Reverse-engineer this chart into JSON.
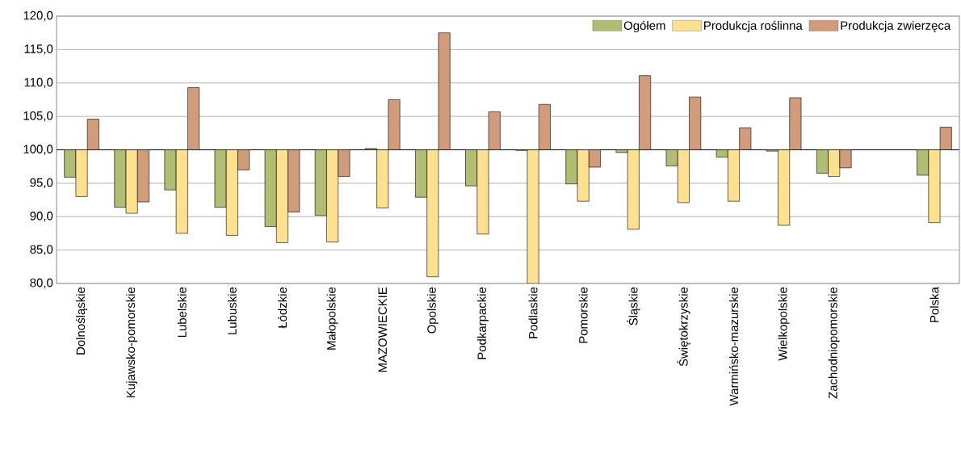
{
  "chart_data": {
    "type": "bar",
    "categories": [
      "Dolnośląskie",
      "Kujawsko-pomorskie",
      "Lubelskie",
      "Lubuskie",
      "Łódzkie",
      "Małopolskie",
      "MAZOWIECKIE",
      "Opolskie",
      "Podkarpackie",
      "Podlaskie",
      "Pomorskie",
      "Śląskie",
      "Świętokrzyskie",
      "Warmińsko-mazurskie",
      "Wielkopolskie",
      "Zachodniopomorskie",
      null,
      "Polska"
    ],
    "series": [
      {
        "name": "Ogółem",
        "color": "#b0bd73",
        "base": [
          100,
          100,
          100,
          100,
          100,
          100,
          100,
          100,
          100,
          100,
          100,
          100,
          100,
          100,
          100,
          100,
          null,
          100
        ],
        "values": [
          -4.1,
          -8.6,
          -6.0,
          -8.6,
          -11.5,
          -9.8,
          0.2,
          -7.1,
          -5.4,
          -0.1,
          -5.1,
          -0.4,
          -2.4,
          -1.1,
          -0.2,
          -3.5,
          null,
          -3.8
        ]
      },
      {
        "name": "Produkcja roślinna",
        "color": "#fde190",
        "base": [
          100,
          100,
          100,
          100,
          100,
          100,
          100,
          100,
          100,
          100,
          100,
          100,
          100,
          100,
          100,
          100,
          null,
          100
        ],
        "values": [
          -7.0,
          -9.5,
          -12.5,
          -12.8,
          -13.9,
          -13.8,
          -8.7,
          -19.0,
          -12.6,
          -20.0,
          -7.7,
          -11.9,
          -7.9,
          -7.7,
          -11.3,
          -4.0,
          null,
          -10.9
        ]
      },
      {
        "name": "Produkcja zwierzęca",
        "color": "#d19c7b",
        "base": [
          100,
          100,
          100,
          100,
          100,
          100,
          100,
          100,
          100,
          100,
          100,
          100,
          100,
          100,
          100,
          100,
          null,
          100
        ],
        "values": [
          4.6,
          -7.8,
          9.3,
          -3.0,
          -9.3,
          -4.0,
          7.5,
          17.5,
          5.7,
          6.8,
          -2.6,
          11.1,
          7.9,
          3.3,
          7.8,
          -2.7,
          null,
          3.4
        ]
      }
    ],
    "ylim": [
      80,
      120
    ],
    "yticks": [
      {
        "value": 80,
        "label": "80,0"
      },
      {
        "value": 85,
        "label": "85,0"
      },
      {
        "value": 90,
        "label": "90,0"
      },
      {
        "value": 95,
        "label": "95,0"
      },
      {
        "value": 100,
        "label": "100,0"
      },
      {
        "value": 105,
        "label": "105,0"
      },
      {
        "value": 110,
        "label": "110,0"
      },
      {
        "value": 115,
        "label": "115,0"
      },
      {
        "value": 120,
        "label": "120,0"
      }
    ],
    "ref_lines": [
      {
        "axis": "y",
        "value": 100,
        "color": "#000000"
      }
    ],
    "grid": "y",
    "legend": "top right"
  }
}
